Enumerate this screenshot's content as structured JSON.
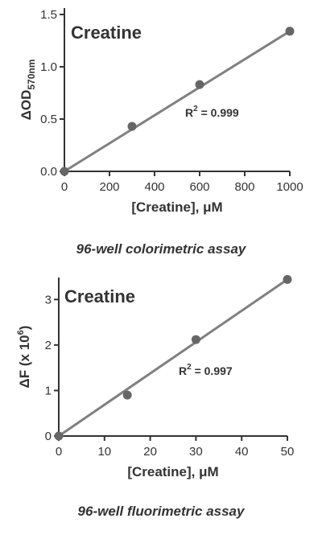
{
  "chart_data": [
    {
      "type": "scatter",
      "title": "Creatine",
      "xlabel": "[Creatine], μM",
      "ylabel": "ΔOD570nm",
      "ylabel_main": "ΔOD",
      "ylabel_sub": "570nm",
      "xlim": [
        0,
        1000
      ],
      "ylim": [
        0,
        1.5
      ],
      "x_ticks": [
        0,
        200,
        400,
        600,
        800,
        1000
      ],
      "x_tick_labels": [
        "0",
        "200",
        "400",
        "600",
        "800",
        "1000"
      ],
      "y_ticks": [
        0,
        0.5,
        1.0,
        1.5
      ],
      "y_tick_labels": [
        "0.0",
        "0.5",
        "1.0",
        "1.5"
      ],
      "series": [
        {
          "x": [
            0,
            300,
            600,
            1000
          ],
          "y": [
            0.0,
            0.43,
            0.83,
            1.34
          ]
        }
      ],
      "fit_line": {
        "x": [
          0,
          1000
        ],
        "y": [
          0.0,
          1.34
        ]
      },
      "r2_text": "R2 = 0.999",
      "r2_base": "R",
      "r2_sup": "2",
      "r2_value": " = 0.999",
      "grid": false,
      "caption": "96-well colorimetric assay"
    },
    {
      "type": "scatter",
      "title": "Creatine",
      "xlabel": "[Creatine], μM",
      "ylabel": "ΔF (x 10^6)",
      "ylabel_main": "ΔF (x 10",
      "ylabel_sup": "6",
      "ylabel_end": ")",
      "xlim": [
        0,
        50
      ],
      "ylim": [
        0,
        3.5
      ],
      "x_ticks": [
        0,
        10,
        20,
        30,
        40,
        50
      ],
      "x_tick_labels": [
        "0",
        "10",
        "20",
        "30",
        "40",
        "50"
      ],
      "y_ticks": [
        0,
        1,
        2,
        3
      ],
      "y_tick_labels": [
        "0",
        "1",
        "2",
        "3"
      ],
      "series": [
        {
          "x": [
            0,
            15,
            30,
            50
          ],
          "y": [
            0.0,
            0.9,
            2.12,
            3.44
          ]
        }
      ],
      "fit_line": {
        "x": [
          0,
          50
        ],
        "y": [
          0.0,
          3.44
        ]
      },
      "r2_text": "R2 = 0.997",
      "r2_base": "R",
      "r2_sup": "2",
      "r2_value": " = 0.997",
      "grid": false,
      "caption": "96-well fluorimetric assay"
    }
  ],
  "colors": {
    "axis": "#333333",
    "line": "#808080",
    "marker": "#666666",
    "text": "#333333"
  }
}
